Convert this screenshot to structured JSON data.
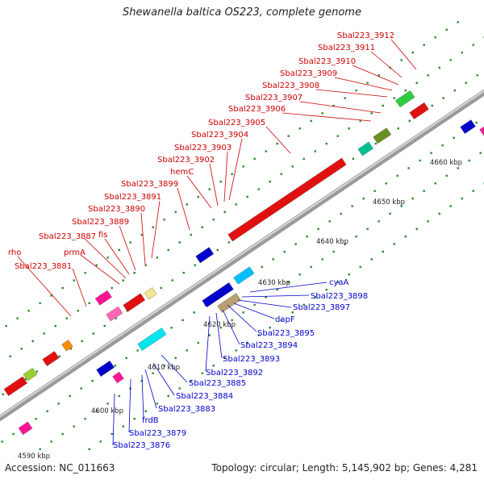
{
  "title": "Shewanella baltica OS223, complete genome",
  "footer": {
    "accession": "Accession: NC_011663",
    "summary": "Topology: circular; Length: 5,145,902 bp; Genes: 4,281"
  },
  "colors": {
    "forward_label": "#cc0000",
    "reverse_label": "#0000cc",
    "backbone": "#8c8c8c",
    "tick": "#2a8a2a"
  },
  "scale_labels": [
    "4590 kbp",
    "4600 kbp",
    "4610 kbp",
    "4620 kbp",
    "4630 kbp",
    "4640 kbp",
    "4650 kbp",
    "4660 kbp"
  ],
  "forward_labels": [
    "rho",
    "Sbal223_3881",
    "prmA",
    "Sbal223_3887",
    "fis",
    "Sbal223_3889",
    "Sbal223_3890",
    "Sbal223_3891",
    "Sbal223_3899",
    "hemC",
    "Sbal223_3902",
    "Sbal223_3903",
    "Sbal223_3904",
    "Sbal223_3905",
    "Sbal223_3906",
    "Sbal223_3907",
    "Sbal223_3908",
    "Sbal223_3909",
    "Sbal223_3910",
    "Sbal223_3911",
    "Sbal223_3912"
  ],
  "reverse_labels": [
    "cyaA",
    "Sbal223_3898",
    "Sbal223_3897",
    "dapF",
    "Sbal223_3895",
    "Sbal223_3894",
    "Sbal223_3893",
    "Sbal223_3892",
    "Sbal223_3885",
    "Sbal223_3884",
    "Sbal223_3883",
    "frdB",
    "Sbal223_3879",
    "Sbal223_3876"
  ]
}
